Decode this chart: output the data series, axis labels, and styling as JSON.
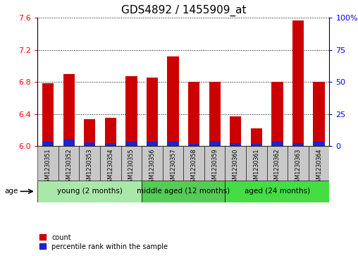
{
  "title": "GDS4892 / 1455909_at",
  "samples": [
    "GSM1230351",
    "GSM1230352",
    "GSM1230353",
    "GSM1230354",
    "GSM1230355",
    "GSM1230356",
    "GSM1230357",
    "GSM1230358",
    "GSM1230359",
    "GSM1230360",
    "GSM1230361",
    "GSM1230362",
    "GSM1230363",
    "GSM1230364"
  ],
  "red_values": [
    6.78,
    6.9,
    6.33,
    6.35,
    6.87,
    6.85,
    7.12,
    6.8,
    6.8,
    6.37,
    6.22,
    6.8,
    7.57,
    6.8
  ],
  "blue_values": [
    0.055,
    0.075,
    0.045,
    0.038,
    0.055,
    0.055,
    0.055,
    0.028,
    0.065,
    0.038,
    0.028,
    0.048,
    0.038,
    0.055
  ],
  "base_value": 6.0,
  "ylim_left": [
    6.0,
    7.6
  ],
  "ylim_right": [
    0,
    100
  ],
  "yticks_left": [
    6.0,
    6.4,
    6.8,
    7.2,
    7.6
  ],
  "yticks_right": [
    0,
    25,
    50,
    75,
    100
  ],
  "ytick_labels_right": [
    "0",
    "25",
    "50",
    "75",
    "100%"
  ],
  "groups": [
    {
      "label": "young (2 months)",
      "start": 0,
      "end": 5,
      "color": "#aae8aa"
    },
    {
      "label": "middle aged (12 months)",
      "start": 5,
      "end": 9,
      "color": "#55cc55"
    },
    {
      "label": "aged (24 months)",
      "start": 9,
      "end": 14,
      "color": "#44dd44"
    }
  ],
  "age_label": "age",
  "legend_red": "count",
  "legend_blue": "percentile rank within the sample",
  "bar_width": 0.55,
  "red_color": "#CC0000",
  "blue_color": "#2222CC",
  "grid_color": "#000000",
  "bg_plot": "#FFFFFF",
  "bg_xtick": "#C8C8C8",
  "title_fontsize": 11,
  "tick_fontsize": 8,
  "label_fontsize": 5.8,
  "group_fontsize": 7.5,
  "legend_fontsize": 7
}
